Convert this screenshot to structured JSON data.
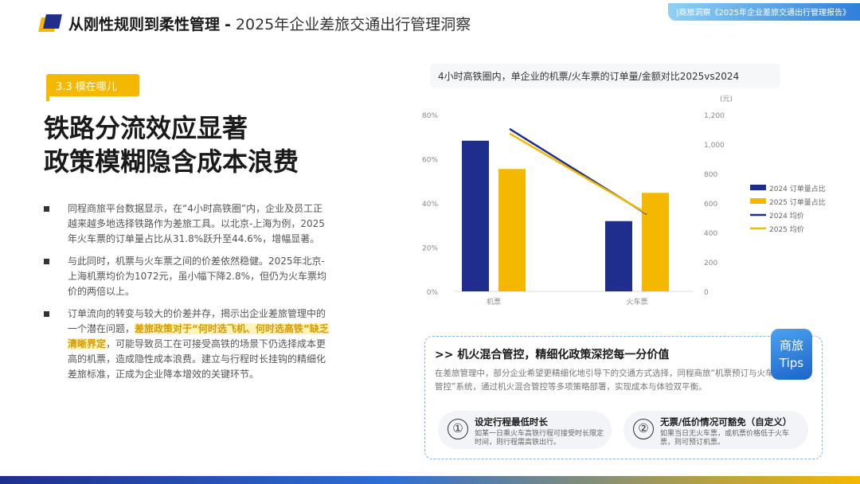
{
  "header": {
    "title_bold": "从刚性规则到柔性管理",
    "separator": "-",
    "title_light": "2025年企业差旅交通出行管理洞察",
    "source": "|商旅洞察《2025年企业差旅交通出行管理报告》"
  },
  "section": {
    "tag": "3.3  模在哪儿"
  },
  "main_title": {
    "line1": "铁路分流效应显著",
    "line2": "政策模糊隐含成本浪费"
  },
  "bullets": [
    {
      "text": "同程商旅平台数据显示，在“4小时高铁圈”内，企业及员工正越来越多地选择铁路作为差旅工具。以北京-上海为例，2025年火车票的订单量占比从31.8%跃升至44.6%，增幅显著。"
    },
    {
      "text": "与此同时，机票与火车票之间的价差依然稳健。2025年北京-上海机票均价为1072元，虽小幅下降2.8%，但仍为火车票均价的两倍以上。"
    },
    {
      "pre": "订单流向的转变与较大的价差并存，揭示出企业差旅管理中的一个潜在问题，",
      "hl": "差旅政策对于“何时选飞机、何时选高铁”缺乏清晰界定",
      "post": "，可能导致员工在可接受高铁的场景下仍选择成本更高的机票，造成隐性成本浪费。建立与行程时长挂钩的精细化差旅标准，正成为企业降本增效的关键环节。"
    }
  ],
  "chart_title": "4小时高铁圈内，单企业的机票/火车票的订单量/金额对比2025vs2024",
  "chart_data": {
    "type": "bar",
    "categories": [
      "机票",
      "火车票"
    ],
    "series": [
      {
        "name": "2024 订单量占比",
        "kind": "bar",
        "axis": "left",
        "color": "#1F2E8C",
        "values": [
          68.2,
          31.8
        ]
      },
      {
        "name": "2025 订单量占比",
        "kind": "bar",
        "axis": "left",
        "color": "#F5B800",
        "values": [
          55.4,
          44.6
        ]
      },
      {
        "name": "2024 均价",
        "kind": "line",
        "axis": "right",
        "color": "#1F2E8C",
        "values": [
          1103,
          525
        ]
      },
      {
        "name": "2025 均价",
        "kind": "line",
        "axis": "right",
        "color": "#F5B800",
        "values": [
          1072,
          530
        ]
      }
    ],
    "ylim_left": [
      0,
      80
    ],
    "yticks_left": [
      "0%",
      "20%",
      "40%",
      "60%",
      "80%"
    ],
    "ylim_right": [
      0,
      1200
    ],
    "yticks_right": [
      "0",
      "200",
      "400",
      "600",
      "800",
      "1,000",
      "1,200"
    ],
    "right_unit": "(元)",
    "legend_position": "right",
    "grid": false
  },
  "tips": {
    "badge_line1": "商旅",
    "badge_line2": "Tips",
    "heading": ">> 机火混合管控，精细化政策深挖每一分价值",
    "desc": "在差旅管理中，部分企业希望更精细化地引导下的交通方式选择，同程商旅“机票预订与火车时长联动管控”系统，通过机火混合管控等多项策略部署，实现成本与体验双平衡。",
    "items": [
      {
        "num": "①",
        "title": "设定行程最低时长",
        "text": "如某一日乘火车高铁行程可接受时长限定时间，则行程需高铁出行。"
      },
      {
        "num": "②",
        "title": "无票/低价情况可豁免（自定义）",
        "text": "如果当日无火车票，或机票价格低于火车票，则可预订机票。"
      }
    ]
  }
}
